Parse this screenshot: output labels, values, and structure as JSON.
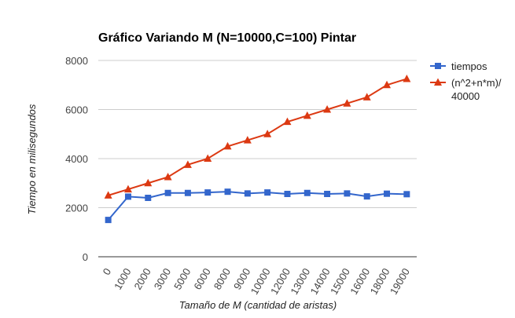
{
  "chart_data": {
    "type": "line",
    "title": "Gráfico Variando M (N=10000,C=100) Pintar",
    "xlabel": "Tamaño de M (cantidad de aristas)",
    "ylabel": "Tiempo en milisegundos",
    "ylim": [
      0,
      8000
    ],
    "yticks": [
      0,
      2000,
      4000,
      6000,
      8000
    ],
    "categories": [
      "0",
      "1000",
      "2000",
      "3000",
      "5000",
      "6000",
      "8000",
      "9000",
      "10000",
      "12000",
      "13000",
      "14000",
      "15000",
      "16000",
      "18000",
      "19000"
    ],
    "grid": true,
    "legend": "right",
    "series": [
      {
        "name": "tiempos",
        "color": "#3366cc",
        "marker": "square",
        "values": [
          1500,
          2450,
          2400,
          2600,
          2600,
          2620,
          2650,
          2580,
          2620,
          2560,
          2600,
          2560,
          2580,
          2460,
          2570,
          2550
        ]
      },
      {
        "name": "(n^2+n*m)/ 40000",
        "legend_lines": [
          "(n^2+n*m)/",
          "40000"
        ],
        "color": "#dc3912",
        "marker": "triangle",
        "values": [
          2500,
          2750,
          3000,
          3250,
          3750,
          4000,
          4500,
          4750,
          5000,
          5500,
          5750,
          6000,
          6250,
          6500,
          7000,
          7250
        ]
      }
    ]
  }
}
